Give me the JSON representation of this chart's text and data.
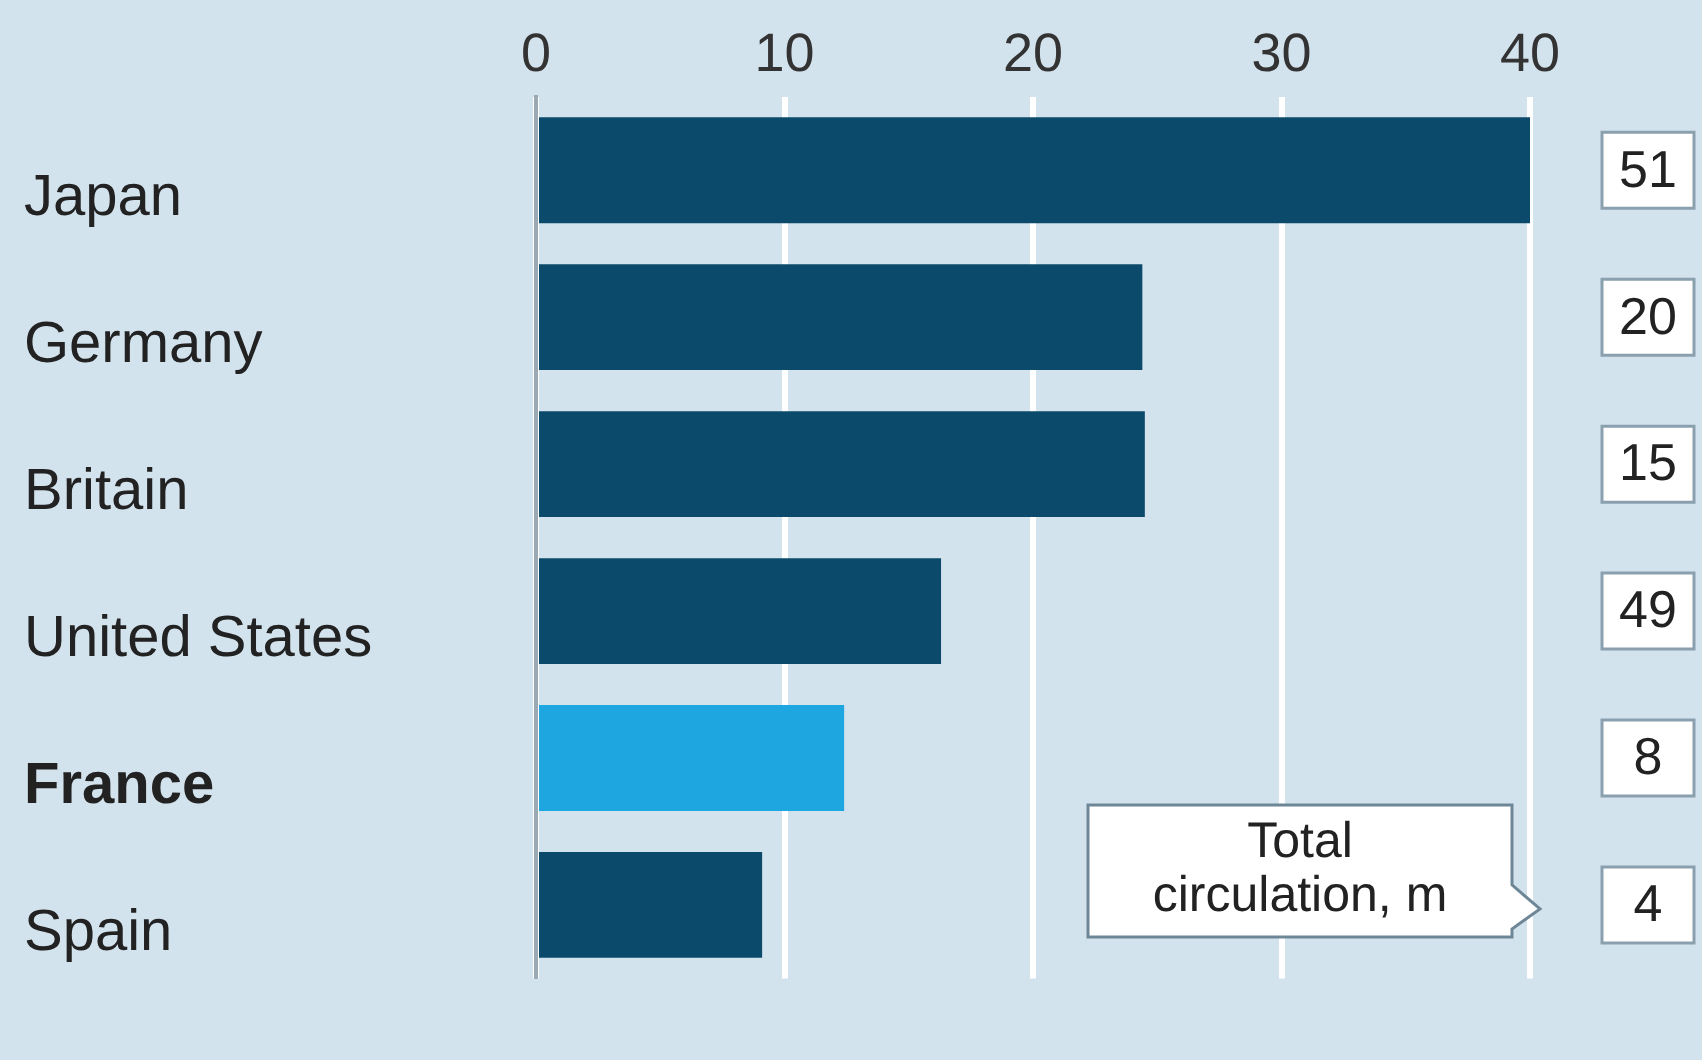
{
  "chart_data": {
    "type": "bar",
    "orientation": "horizontal",
    "categories": [
      "Japan",
      "Germany",
      "Britain",
      "United States",
      "France",
      "Spain"
    ],
    "values": [
      40,
      24.4,
      24.5,
      16.3,
      12.4,
      9.1
    ],
    "colors": [
      "#0b4a6a",
      "#0b4a6a",
      "#0b4a6a",
      "#0b4a6a",
      "#1ea6e0",
      "#0b4a6a"
    ],
    "xlim": [
      0,
      40
    ],
    "xticks": [
      0,
      10,
      20,
      30,
      40
    ],
    "grid": "x",
    "annotations": [
      "51",
      "20",
      "15",
      "49",
      "8",
      "4",
      "Total circulation, m"
    ]
  }
}
